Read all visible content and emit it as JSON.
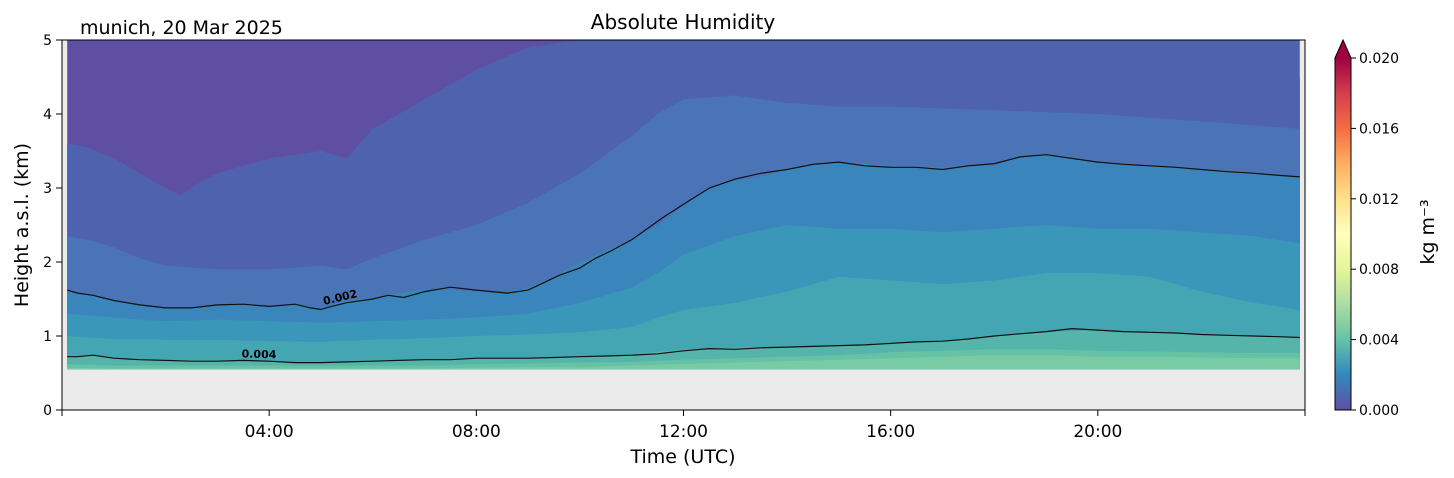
{
  "location_date": "munich, 20 Mar 2025",
  "chart_data": {
    "type": "heatmap",
    "title": "Absolute Humidity",
    "xlabel": "Time (UTC)",
    "ylabel": "Height a.s.l. (km)",
    "xlim": [
      0,
      24
    ],
    "ylim": [
      0,
      5
    ],
    "x_ticks": [
      {
        "value": 4,
        "label": "04:00"
      },
      {
        "value": 8,
        "label": "08:00"
      },
      {
        "value": 12,
        "label": "12:00"
      },
      {
        "value": 16,
        "label": "16:00"
      },
      {
        "value": 20,
        "label": "20:00"
      }
    ],
    "y_ticks": [
      {
        "value": 0,
        "label": "0"
      },
      {
        "value": 1,
        "label": "1"
      },
      {
        "value": 2,
        "label": "2"
      },
      {
        "value": 3,
        "label": "3"
      },
      {
        "value": 4,
        "label": "4"
      },
      {
        "value": 5,
        "label": "5"
      }
    ],
    "data_start_height_km": 0.55,
    "data_time_range_h": [
      0.1,
      23.9
    ],
    "missing_data_color": "#ebebeb",
    "colorbar": {
      "label": "kg m⁻³",
      "colormap": "Spectral_r",
      "range": [
        0.0,
        0.02
      ],
      "extend": "max",
      "ticks": [
        {
          "value": 0.0,
          "label": "0.000"
        },
        {
          "value": 0.004,
          "label": "0.004"
        },
        {
          "value": 0.008,
          "label": "0.008"
        },
        {
          "value": 0.012,
          "label": "0.012"
        },
        {
          "value": 0.016,
          "label": "0.016"
        },
        {
          "value": 0.02,
          "label": "0.020"
        }
      ]
    },
    "fill_levels": [
      {
        "upper_value": 0.001,
        "color": "#5e4fa2",
        "upper_boundary": {
          "t": [
            0.1,
            1,
            2,
            2.3,
            3,
            4,
            5,
            5.5,
            6,
            7,
            8,
            10,
            11,
            11.5,
            12,
            14,
            16,
            18,
            20,
            22,
            23.9
          ],
          "h": [
            5,
            5,
            5,
            5,
            5,
            5,
            5,
            5,
            5,
            5,
            5,
            5,
            5,
            5,
            4.8,
            4.5,
            4.7,
            4.9,
            4.8,
            4.6,
            4.5
          ]
        }
      },
      {
        "upper_value": 0.0015,
        "color": "#4f62ad",
        "upper_boundary": {
          "t": [
            0.1,
            0.5,
            1,
            1.5,
            2,
            2.3,
            2.6,
            3,
            4,
            5,
            5.5,
            6,
            7,
            8,
            9,
            10,
            11,
            11.5,
            12,
            13,
            14,
            16,
            18,
            20,
            22,
            23.9
          ],
          "h": [
            3.6,
            3.55,
            3.4,
            3.2,
            3.0,
            2.9,
            3.05,
            3.2,
            3.4,
            3.5,
            3.4,
            3.8,
            4.2,
            4.6,
            4.9,
            5,
            5,
            5,
            5,
            5,
            5,
            5,
            5,
            5,
            5,
            5
          ]
        }
      },
      {
        "upper_value": 0.002,
        "color": "#4a74b6",
        "upper_boundary": {
          "t": [
            0.1,
            0.5,
            1,
            1.5,
            2,
            3,
            4,
            5,
            5.5,
            6,
            7,
            8,
            9,
            10,
            11,
            11.5,
            12,
            13,
            14,
            15,
            16,
            18,
            20,
            22,
            23.9
          ],
          "h": [
            2.35,
            2.3,
            2.2,
            2.05,
            1.95,
            1.9,
            1.9,
            1.95,
            1.9,
            2.05,
            2.3,
            2.5,
            2.8,
            3.2,
            3.7,
            4.0,
            4.2,
            4.25,
            4.15,
            4.1,
            4.1,
            4.05,
            4.0,
            3.9,
            3.8
          ]
        }
      },
      {
        "upper_value": 0.0025,
        "color": "#3a86bc",
        "upper_boundary": {
          "t": [
            0.1,
            0.5,
            1,
            1.5,
            2,
            2.5,
            3,
            3.5,
            4,
            4.5,
            5,
            5.5,
            6,
            6.5,
            7,
            7.5,
            8,
            8.5,
            9,
            9.5,
            10,
            10.5,
            11,
            11.5,
            12,
            12.5,
            13,
            13.5,
            14,
            14.5,
            15,
            16,
            17,
            18,
            18.5,
            19,
            19.5,
            20,
            21,
            22,
            23,
            23.9
          ],
          "h": [
            1.6,
            1.55,
            1.48,
            1.42,
            1.38,
            1.38,
            1.42,
            1.43,
            1.4,
            1.43,
            1.38,
            1.48,
            1.52,
            1.58,
            1.63,
            1.62,
            1.6,
            1.58,
            1.65,
            1.8,
            2.0,
            2.15,
            2.3,
            2.5,
            2.75,
            3.0,
            3.1,
            3.15,
            3.25,
            3.3,
            3.35,
            3.3,
            3.28,
            3.3,
            3.42,
            3.45,
            3.42,
            3.35,
            3.3,
            3.25,
            3.2,
            3.15
          ]
        }
      },
      {
        "upper_value": 0.003,
        "color": "#3a97b9",
        "upper_boundary": {
          "t": [
            0.1,
            0.5,
            1,
            1.5,
            2,
            3,
            4,
            5,
            6,
            7,
            8,
            9,
            10,
            11,
            11.5,
            12,
            13,
            14,
            15,
            16,
            17,
            18,
            19,
            20,
            21,
            22,
            23,
            23.9
          ],
          "h": [
            1.3,
            1.28,
            1.25,
            1.22,
            1.2,
            1.22,
            1.2,
            1.18,
            1.2,
            1.22,
            1.25,
            1.3,
            1.45,
            1.65,
            1.85,
            2.1,
            2.35,
            2.5,
            2.45,
            2.45,
            2.4,
            2.45,
            2.5,
            2.45,
            2.45,
            2.4,
            2.35,
            2.25
          ]
        }
      },
      {
        "upper_value": 0.0035,
        "color": "#45a6b3",
        "upper_boundary": {
          "t": [
            0.1,
            0.5,
            1,
            2,
            3,
            4,
            5,
            6,
            7,
            8,
            9,
            10,
            11,
            11.5,
            12,
            13,
            14,
            15,
            16,
            17,
            18,
            19,
            20,
            21,
            22,
            23,
            23.9
          ],
          "h": [
            1.0,
            0.98,
            0.96,
            0.95,
            0.95,
            0.93,
            0.92,
            0.95,
            0.97,
            1.0,
            1.02,
            1.05,
            1.12,
            1.25,
            1.35,
            1.45,
            1.6,
            1.8,
            1.75,
            1.7,
            1.75,
            1.85,
            1.85,
            1.8,
            1.6,
            1.45,
            1.35
          ]
        }
      },
      {
        "upper_value": 0.004,
        "color": "#55b5aa",
        "upper_boundary": {
          "t": [
            0.1,
            0.5,
            1,
            2,
            3,
            4,
            5,
            6,
            7,
            8,
            9,
            10,
            11,
            12,
            13,
            14,
            15,
            16,
            17,
            18,
            19,
            20,
            21,
            22,
            23,
            23.9
          ],
          "h": [
            0.72,
            0.74,
            0.7,
            0.68,
            0.67,
            0.66,
            0.64,
            0.66,
            0.68,
            0.7,
            0.7,
            0.72,
            0.75,
            0.82,
            0.84,
            0.85,
            0.88,
            0.9,
            0.92,
            1.0,
            1.05,
            1.08,
            1.05,
            1.02,
            1.0,
            0.98
          ]
        }
      },
      {
        "upper_value": 0.0045,
        "color": "#66c2a5",
        "upper_boundary": {
          "t": [
            0.1,
            1,
            2,
            3,
            4,
            5,
            6,
            7,
            8,
            9,
            10,
            11,
            12,
            13,
            14,
            15,
            16,
            17,
            18,
            19,
            20,
            21,
            22,
            23,
            23.9
          ],
          "h": [
            0.62,
            0.6,
            0.6,
            0.6,
            0.6,
            0.6,
            0.6,
            0.6,
            0.62,
            0.63,
            0.64,
            0.65,
            0.68,
            0.7,
            0.72,
            0.74,
            0.78,
            0.8,
            0.82,
            0.82,
            0.8,
            0.79,
            0.78,
            0.77,
            0.77
          ]
        }
      },
      {
        "upper_value": 0.005,
        "color": "#79cba5",
        "upper_boundary": {
          "t": [
            0.1,
            1,
            2,
            3,
            4,
            5,
            6,
            7,
            8,
            9,
            10,
            11,
            12,
            13,
            14,
            15,
            16,
            17,
            18,
            19,
            20,
            21,
            22,
            23,
            23.9
          ],
          "h": [
            0.57,
            0.56,
            0.56,
            0.56,
            0.56,
            0.56,
            0.56,
            0.56,
            0.57,
            0.58,
            0.58,
            0.6,
            0.62,
            0.64,
            0.66,
            0.68,
            0.7,
            0.72,
            0.74,
            0.74,
            0.72,
            0.72,
            0.71,
            0.7,
            0.7
          ]
        }
      }
    ],
    "contours": [
      {
        "value": 0.002,
        "label": "0.002",
        "label_at_h": 5.4,
        "t": [
          0.1,
          0.3,
          0.6,
          1,
          1.5,
          2,
          2.5,
          3,
          3.5,
          4,
          4.5,
          4.8,
          5,
          5.2,
          5.5,
          6,
          6.3,
          6.6,
          7,
          7.5,
          8,
          8.3,
          8.6,
          9,
          9.3,
          9.6,
          10,
          10.3,
          10.6,
          11,
          11.3,
          11.6,
          12,
          12.5,
          13,
          13.5,
          14,
          14.5,
          15,
          15.5,
          16,
          16.5,
          17,
          17.5,
          18,
          18.5,
          19,
          19.5,
          20,
          20.5,
          21,
          21.5,
          22,
          22.5,
          23,
          23.5,
          23.9
        ],
        "h": [
          1.62,
          1.58,
          1.55,
          1.48,
          1.42,
          1.38,
          1.38,
          1.42,
          1.43,
          1.4,
          1.43,
          1.38,
          1.36,
          1.4,
          1.45,
          1.5,
          1.55,
          1.52,
          1.6,
          1.66,
          1.62,
          1.6,
          1.58,
          1.62,
          1.72,
          1.82,
          1.92,
          2.05,
          2.15,
          2.3,
          2.45,
          2.6,
          2.78,
          3.0,
          3.12,
          3.2,
          3.25,
          3.32,
          3.35,
          3.3,
          3.28,
          3.28,
          3.25,
          3.3,
          3.33,
          3.42,
          3.45,
          3.4,
          3.35,
          3.32,
          3.3,
          3.28,
          3.25,
          3.22,
          3.2,
          3.17,
          3.15
        ]
      },
      {
        "value": 0.004,
        "label": "0.004",
        "label_at_h": 3.8,
        "t": [
          0.1,
          0.3,
          0.6,
          1,
          1.5,
          2,
          2.5,
          3,
          3.5,
          4,
          4.5,
          5,
          5.5,
          6,
          6.5,
          7,
          7.5,
          8,
          8.5,
          9,
          9.5,
          10,
          10.5,
          11,
          11.5,
          12,
          12.5,
          13,
          13.5,
          14,
          14.5,
          15,
          15.5,
          16,
          16.5,
          17,
          17.5,
          18,
          18.5,
          19,
          19.5,
          20,
          20.5,
          21,
          21.5,
          22,
          22.5,
          23,
          23.5,
          23.9
        ],
        "h": [
          0.72,
          0.72,
          0.74,
          0.7,
          0.68,
          0.67,
          0.66,
          0.66,
          0.67,
          0.66,
          0.64,
          0.64,
          0.65,
          0.66,
          0.67,
          0.68,
          0.68,
          0.7,
          0.7,
          0.7,
          0.71,
          0.72,
          0.73,
          0.74,
          0.76,
          0.8,
          0.83,
          0.82,
          0.84,
          0.85,
          0.86,
          0.87,
          0.88,
          0.9,
          0.92,
          0.93,
          0.96,
          1.0,
          1.03,
          1.06,
          1.1,
          1.08,
          1.06,
          1.05,
          1.04,
          1.02,
          1.01,
          1.0,
          0.99,
          0.98
        ]
      }
    ]
  }
}
